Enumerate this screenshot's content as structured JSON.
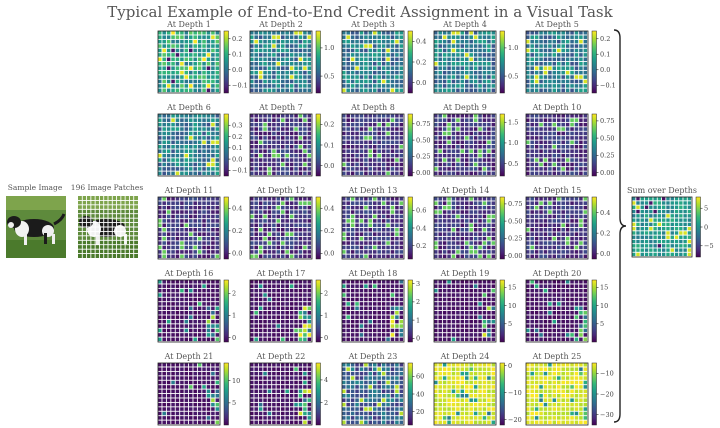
{
  "figure": {
    "title": "Typical Example of End-to-End Credit Assignment in a Visual Task",
    "sample_label": "Sample Image",
    "patches_label": "196 Image Patches",
    "sum_label": "Sum over Depths"
  },
  "colors": {
    "viridis": [
      "#440154",
      "#482878",
      "#3e4989",
      "#31688e",
      "#26828e",
      "#1f9e89",
      "#35b779",
      "#6ece58",
      "#b5de2b",
      "#fde725"
    ],
    "grid_line": "#ffffff",
    "text": "#555555"
  },
  "chart_data": {
    "type": "heatmap",
    "grid_size": [
      14,
      14
    ],
    "panels": [
      {
        "label": "At Depth 1",
        "ticks": [
          "0.2",
          "0.1",
          "0.0",
          "−0.1"
        ],
        "tick_values": [
          0.2,
          0.1,
          0.0,
          -0.1
        ],
        "vmin": -0.15,
        "vmax": 0.25,
        "pattern": "high"
      },
      {
        "label": "At Depth 2",
        "ticks": [
          "1.0",
          "0.5"
        ],
        "tick_values": [
          1.0,
          0.5
        ],
        "vmin": 0.2,
        "vmax": 1.3,
        "pattern": "mid"
      },
      {
        "label": "At Depth 3",
        "ticks": [
          "0.4",
          "0.2",
          "0.0"
        ],
        "tick_values": [
          0.4,
          0.2,
          0.0
        ],
        "vmin": -0.1,
        "vmax": 0.5,
        "pattern": "mid"
      },
      {
        "label": "At Depth 4",
        "ticks": [
          "1.0",
          "0.5"
        ],
        "tick_values": [
          1.0,
          0.5
        ],
        "vmin": 0.2,
        "vmax": 1.3,
        "pattern": "mid"
      },
      {
        "label": "At Depth 5",
        "ticks": [
          "0.2",
          "0.1",
          "0.0",
          "−0.1"
        ],
        "tick_values": [
          0.2,
          0.1,
          0.0,
          -0.1
        ],
        "vmin": -0.15,
        "vmax": 0.25,
        "pattern": "mid"
      },
      {
        "label": "At Depth 6",
        "ticks": [
          "0.3",
          "0.2",
          "0.1",
          "0.0",
          "−0.1"
        ],
        "tick_values": [
          0.3,
          0.2,
          0.1,
          0.0,
          -0.1
        ],
        "vmin": -0.15,
        "vmax": 0.4,
        "pattern": "mid"
      },
      {
        "label": "At Depth 7",
        "ticks": [
          "0.2",
          "0.1",
          "0.0"
        ],
        "tick_values": [
          0.2,
          0.1,
          0.0
        ],
        "vmin": -0.05,
        "vmax": 0.25,
        "pattern": "low"
      },
      {
        "label": "At Depth 8",
        "ticks": [
          "0.75",
          "0.50",
          "0.25",
          "0.00"
        ],
        "tick_values": [
          0.75,
          0.5,
          0.25,
          0.0
        ],
        "vmin": -0.05,
        "vmax": 0.9,
        "pattern": "low"
      },
      {
        "label": "At Depth 9",
        "ticks": [
          "1.5",
          "1.0",
          "0.5"
        ],
        "tick_values": [
          1.5,
          1.0,
          0.5
        ],
        "vmin": 0.2,
        "vmax": 1.7,
        "pattern": "low"
      },
      {
        "label": "At Depth 10",
        "ticks": [
          "0.75",
          "0.50",
          "0.25",
          "0.00"
        ],
        "tick_values": [
          0.75,
          0.5,
          0.25,
          0.0
        ],
        "vmin": -0.05,
        "vmax": 0.85,
        "pattern": "low"
      },
      {
        "label": "At Depth 11",
        "ticks": [
          "0.4",
          "0.2",
          "0.0"
        ],
        "tick_values": [
          0.4,
          0.2,
          0.0
        ],
        "vmin": -0.05,
        "vmax": 0.5,
        "pattern": "low"
      },
      {
        "label": "At Depth 12",
        "ticks": [
          "0.4",
          "0.2",
          "0.0"
        ],
        "tick_values": [
          0.4,
          0.2,
          0.0
        ],
        "vmin": -0.05,
        "vmax": 0.5,
        "pattern": "low"
      },
      {
        "label": "At Depth 13",
        "ticks": [
          "0.6",
          "0.4",
          "0.2"
        ],
        "tick_values": [
          0.6,
          0.4,
          0.2
        ],
        "vmin": 0.05,
        "vmax": 0.75,
        "pattern": "low"
      },
      {
        "label": "At Depth 14",
        "ticks": [
          "0.75",
          "0.50",
          "0.25",
          "0.00"
        ],
        "tick_values": [
          0.75,
          0.5,
          0.25,
          0.0
        ],
        "vmin": -0.05,
        "vmax": 0.85,
        "pattern": "low"
      },
      {
        "label": "At Depth 15",
        "ticks": [
          "0.4",
          "0.2",
          "0.0"
        ],
        "tick_values": [
          0.4,
          0.2,
          0.0
        ],
        "vmin": -0.05,
        "vmax": 0.55,
        "pattern": "low"
      },
      {
        "label": "At Depth 16",
        "ticks": [
          "2",
          "1",
          "0"
        ],
        "tick_values": [
          2,
          1,
          0
        ],
        "vmin": -0.2,
        "vmax": 2.6,
        "pattern": "sparse"
      },
      {
        "label": "At Depth 17",
        "ticks": [
          "2",
          "1",
          "0"
        ],
        "tick_values": [
          2,
          1,
          0
        ],
        "vmin": -0.2,
        "vmax": 2.6,
        "pattern": "sparse"
      },
      {
        "label": "At Depth 18",
        "ticks": [
          "3",
          "2",
          "1",
          "0"
        ],
        "tick_values": [
          3,
          2,
          1,
          0
        ],
        "vmin": -0.2,
        "vmax": 3.2,
        "pattern": "sparse"
      },
      {
        "label": "At Depth 19",
        "ticks": [
          "15",
          "10",
          "5"
        ],
        "tick_values": [
          15,
          10,
          5
        ],
        "vmin": 0,
        "vmax": 17,
        "pattern": "sparse"
      },
      {
        "label": "At Depth 20",
        "ticks": [
          "15",
          "10",
          "5"
        ],
        "tick_values": [
          15,
          10,
          5
        ],
        "vmin": 0,
        "vmax": 17,
        "pattern": "sparse"
      },
      {
        "label": "At Depth 21",
        "ticks": [
          "10",
          "5"
        ],
        "tick_values": [
          10,
          5
        ],
        "vmin": 0,
        "vmax": 14,
        "pattern": "sparse"
      },
      {
        "label": "At Depth 22",
        "ticks": [
          "4",
          "2"
        ],
        "tick_values": [
          4,
          2
        ],
        "vmin": 0,
        "vmax": 5.5,
        "pattern": "sparse"
      },
      {
        "label": "At Depth 23",
        "ticks": [
          "60",
          "40",
          "20"
        ],
        "tick_values": [
          60,
          40,
          20
        ],
        "vmin": 5,
        "vmax": 75,
        "pattern": "lowmid"
      },
      {
        "label": "At Depth 24",
        "ticks": [
          "0",
          "−10",
          "−20"
        ],
        "tick_values": [
          0,
          -10,
          -20
        ],
        "vmin": -22,
        "vmax": 1,
        "pattern": "yellow"
      },
      {
        "label": "At Depth 25",
        "ticks": [
          "−10",
          "−20",
          "−30"
        ],
        "tick_values": [
          -10,
          -20,
          -30
        ],
        "vmin": -35,
        "vmax": -5,
        "pattern": "yellow"
      }
    ],
    "sum": {
      "label": "Sum over Depths",
      "ticks": [
        "5",
        "0",
        "−5"
      ],
      "tick_values": [
        5,
        0,
        -5
      ],
      "vmin": -8,
      "vmax": 8,
      "pattern": "sum"
    }
  }
}
